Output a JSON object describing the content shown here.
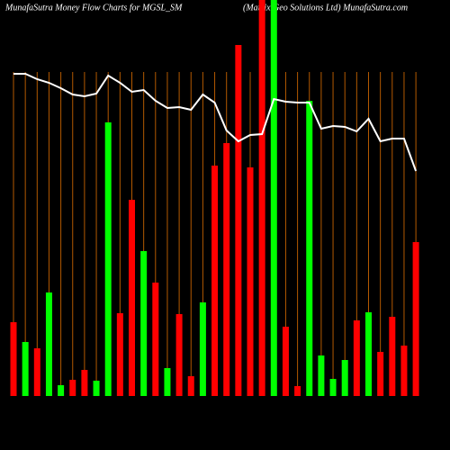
{
  "chart_data": {
    "type": "bar",
    "title": "MunafaSutra  Money Flow  Charts for MGSL_SM",
    "subtitle": "(Matrix Geo Solutions Ltd) MunafaSutra.com",
    "ylim": [
      0,
      440
    ],
    "values": [
      82,
      60,
      53,
      115,
      12,
      18,
      29,
      17,
      304,
      92,
      218,
      161,
      126,
      31,
      91,
      22,
      104,
      256,
      281,
      390,
      254,
      440,
      440,
      77,
      11,
      328,
      45,
      19,
      40,
      84,
      93,
      49,
      88,
      56,
      171
    ],
    "colors": [
      "#ff0000",
      "#00ff00",
      "#ff0000",
      "#00ff00",
      "#00ff00",
      "#ff0000",
      "#ff0000",
      "#00ff00",
      "#00ff00",
      "#ff0000",
      "#ff0000",
      "#00ff00",
      "#ff0000",
      "#00ff00",
      "#ff0000",
      "#ff0000",
      "#00ff00",
      "#ff0000",
      "#ff0000",
      "#ff0000",
      "#ff0000",
      "#ff0000",
      "#00ff00",
      "#ff0000",
      "#ff0000",
      "#00ff00",
      "#00ff00",
      "#00ff00",
      "#00ff00",
      "#ff0000",
      "#00ff00",
      "#ff0000",
      "#ff0000",
      "#ff0000",
      "#ff0000"
    ],
    "line": {
      "color": "#ffffff",
      "values": [
        358,
        358,
        352,
        348,
        342,
        335,
        333,
        336,
        356,
        348,
        338,
        340,
        328,
        320,
        321,
        318,
        335,
        326,
        295,
        283,
        290,
        291,
        330,
        327,
        326,
        326,
        297,
        300,
        299,
        294,
        308,
        283,
        286,
        286,
        250
      ]
    },
    "gridline_color": "#b35900"
  }
}
